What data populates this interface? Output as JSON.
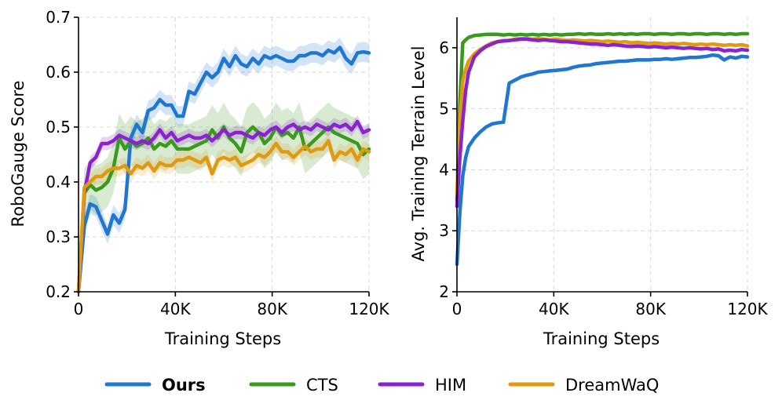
{
  "legend": [
    {
      "key": "ours",
      "label": "Ours",
      "color": "#1f77d0",
      "bold": true
    },
    {
      "key": "cts",
      "label": "CTS",
      "color": "#3a9a1e",
      "bold": false
    },
    {
      "key": "him",
      "label": "HIM",
      "color": "#8a22cf",
      "bold": false
    },
    {
      "key": "dreamwaq",
      "label": "DreamWaQ",
      "color": "#e09a12",
      "bold": false
    }
  ],
  "chart_data": [
    {
      "type": "line",
      "title": "",
      "xlabel": "Training Steps",
      "ylabel": "RoboGauge Score",
      "xlim": [
        0,
        120000
      ],
      "ylim": [
        0.2,
        0.7
      ],
      "xticks": [
        0,
        40000,
        80000,
        120000
      ],
      "xtick_labels": [
        "0",
        "40K",
        "80K",
        "120K"
      ],
      "yticks": [
        0.2,
        0.3,
        0.4,
        0.5,
        0.6,
        0.7
      ],
      "ytick_labels": [
        "0.2",
        "0.3",
        "0.4",
        "0.5",
        "0.6",
        "0.7"
      ],
      "grid": true,
      "x": [
        0,
        2400,
        4800,
        7200,
        9600,
        12000,
        14400,
        16800,
        19200,
        21600,
        24000,
        26400,
        28800,
        31200,
        33600,
        36000,
        38400,
        40800,
        43200,
        45600,
        48000,
        50400,
        52800,
        55200,
        57600,
        60000,
        62400,
        64800,
        67200,
        69600,
        72000,
        74400,
        76800,
        79200,
        81600,
        84000,
        86400,
        88800,
        91200,
        93600,
        96000,
        98400,
        100800,
        103200,
        105600,
        108000,
        110400,
        112800,
        115200,
        117600,
        120000
      ],
      "series": [
        {
          "key": "ours",
          "name": "Ours",
          "values": [
            0.2,
            0.32,
            0.36,
            0.355,
            0.33,
            0.305,
            0.34,
            0.325,
            0.35,
            0.48,
            0.505,
            0.49,
            0.53,
            0.535,
            0.55,
            0.54,
            0.54,
            0.52,
            0.52,
            0.565,
            0.56,
            0.58,
            0.6,
            0.59,
            0.6,
            0.625,
            0.61,
            0.63,
            0.615,
            0.61,
            0.625,
            0.615,
            0.63,
            0.625,
            0.63,
            0.625,
            0.62,
            0.62,
            0.63,
            0.63,
            0.635,
            0.635,
            0.63,
            0.64,
            0.635,
            0.645,
            0.625,
            0.615,
            0.635,
            0.637,
            0.635
          ],
          "spread": 0.018
        },
        {
          "key": "cts",
          "name": "CTS",
          "values": [
            0.2,
            0.38,
            0.395,
            0.385,
            0.39,
            0.4,
            0.425,
            0.48,
            0.46,
            0.475,
            0.465,
            0.47,
            0.48,
            0.46,
            0.47,
            0.465,
            0.475,
            0.46,
            0.46,
            0.46,
            0.465,
            0.47,
            0.475,
            0.495,
            0.48,
            0.5,
            0.48,
            0.47,
            0.455,
            0.49,
            0.5,
            0.49,
            0.47,
            0.48,
            0.5,
            0.485,
            0.49,
            0.48,
            0.5,
            0.46,
            0.47,
            0.48,
            0.49,
            0.5,
            0.49,
            0.485,
            0.48,
            0.475,
            0.47,
            0.45,
            0.46
          ],
          "spread": 0.045
        },
        {
          "key": "him",
          "name": "HIM",
          "values": [
            0.2,
            0.38,
            0.435,
            0.445,
            0.47,
            0.47,
            0.475,
            0.485,
            0.48,
            0.475,
            0.47,
            0.475,
            0.47,
            0.48,
            0.495,
            0.48,
            0.49,
            0.475,
            0.48,
            0.485,
            0.48,
            0.48,
            0.485,
            0.475,
            0.485,
            0.495,
            0.485,
            0.49,
            0.49,
            0.485,
            0.48,
            0.49,
            0.485,
            0.495,
            0.5,
            0.49,
            0.5,
            0.505,
            0.495,
            0.5,
            0.495,
            0.505,
            0.5,
            0.495,
            0.505,
            0.5,
            0.505,
            0.495,
            0.51,
            0.49,
            0.495
          ],
          "spread": 0.012
        },
        {
          "key": "dreamwaq",
          "name": "DreamWaQ",
          "values": [
            0.2,
            0.39,
            0.4,
            0.41,
            0.41,
            0.42,
            0.425,
            0.425,
            0.43,
            0.415,
            0.43,
            0.425,
            0.435,
            0.42,
            0.435,
            0.43,
            0.43,
            0.44,
            0.44,
            0.445,
            0.44,
            0.435,
            0.445,
            0.415,
            0.44,
            0.445,
            0.44,
            0.445,
            0.43,
            0.435,
            0.44,
            0.45,
            0.445,
            0.455,
            0.47,
            0.455,
            0.455,
            0.445,
            0.455,
            0.465,
            0.455,
            0.46,
            0.46,
            0.475,
            0.44,
            0.455,
            0.45,
            0.46,
            0.44,
            0.46,
            0.455
          ],
          "spread": 0.015
        }
      ]
    },
    {
      "type": "line",
      "title": "",
      "xlabel": "Training Steps",
      "ylabel": "Avg. Training Terrain Level",
      "xlim": [
        0,
        120000
      ],
      "ylim": [
        2,
        6.5
      ],
      "xticks": [
        0,
        40000,
        80000,
        120000
      ],
      "xtick_labels": [
        "0",
        "40K",
        "80K",
        "120K"
      ],
      "yticks": [
        2,
        3,
        4,
        5,
        6
      ],
      "ytick_labels": [
        "2",
        "3",
        "4",
        "5",
        "6"
      ],
      "grid": true,
      "x": [
        0,
        1200,
        2400,
        3600,
        4800,
        7200,
        9600,
        12000,
        14400,
        16800,
        19200,
        21600,
        24000,
        26400,
        28800,
        31200,
        33600,
        36000,
        38400,
        40800,
        43200,
        45600,
        48000,
        50400,
        52800,
        55200,
        57600,
        60000,
        62400,
        64800,
        67200,
        69600,
        72000,
        74400,
        76800,
        79200,
        81600,
        84000,
        86400,
        88800,
        91200,
        93600,
        96000,
        98400,
        100800,
        103200,
        105600,
        108000,
        110400,
        112800,
        115200,
        117600,
        120000
      ],
      "series": [
        {
          "key": "ours",
          "name": "Ours",
          "values": [
            2.45,
            3.3,
            3.9,
            4.2,
            4.38,
            4.52,
            4.62,
            4.7,
            4.75,
            4.77,
            4.78,
            5.42,
            5.47,
            5.52,
            5.55,
            5.57,
            5.6,
            5.61,
            5.62,
            5.63,
            5.64,
            5.65,
            5.68,
            5.7,
            5.71,
            5.72,
            5.74,
            5.75,
            5.76,
            5.77,
            5.78,
            5.78,
            5.79,
            5.8,
            5.8,
            5.8,
            5.81,
            5.81,
            5.82,
            5.81,
            5.82,
            5.83,
            5.84,
            5.84,
            5.85,
            5.86,
            5.88,
            5.87,
            5.8,
            5.85,
            5.83,
            5.86,
            5.85
          ],
          "spread": 0.025
        },
        {
          "key": "cts",
          "name": "CTS",
          "values": [
            3.5,
            5.1,
            6.08,
            6.13,
            6.17,
            6.2,
            6.21,
            6.22,
            6.22,
            6.22,
            6.21,
            6.22,
            6.21,
            6.22,
            6.21,
            6.22,
            6.21,
            6.22,
            6.21,
            6.22,
            6.21,
            6.22,
            6.22,
            6.23,
            6.22,
            6.23,
            6.22,
            6.22,
            6.23,
            6.22,
            6.23,
            6.22,
            6.23,
            6.22,
            6.23,
            6.23,
            6.22,
            6.23,
            6.23,
            6.22,
            6.23,
            6.23,
            6.22,
            6.23,
            6.23,
            6.22,
            6.23,
            6.23,
            6.22,
            6.23,
            6.22,
            6.23,
            6.23
          ],
          "spread": 0.01
        },
        {
          "key": "dreamwaq",
          "name": "DreamWaQ",
          "values": [
            3.6,
            4.8,
            5.45,
            5.65,
            5.78,
            5.9,
            5.97,
            6.03,
            6.08,
            6.1,
            6.12,
            6.12,
            6.14,
            6.15,
            6.15,
            6.14,
            6.15,
            6.14,
            6.13,
            6.14,
            6.13,
            6.12,
            6.13,
            6.12,
            6.11,
            6.12,
            6.11,
            6.1,
            6.11,
            6.1,
            6.09,
            6.1,
            6.08,
            6.09,
            6.08,
            6.07,
            6.08,
            6.07,
            6.06,
            6.07,
            6.06,
            6.07,
            6.06,
            6.05,
            6.06,
            6.05,
            6.06,
            6.05,
            6.04,
            6.05,
            6.04,
            6.05,
            6.03
          ],
          "spread": 0.012
        },
        {
          "key": "him",
          "name": "HIM",
          "values": [
            3.4,
            4.2,
            4.8,
            5.3,
            5.6,
            5.85,
            5.95,
            6.02,
            6.06,
            6.1,
            6.11,
            6.12,
            6.13,
            6.14,
            6.14,
            6.13,
            6.12,
            6.13,
            6.12,
            6.11,
            6.1,
            6.1,
            6.09,
            6.08,
            6.07,
            6.06,
            6.06,
            6.05,
            6.04,
            6.05,
            6.04,
            6.03,
            6.02,
            6.03,
            6.02,
            6.01,
            6.02,
            6.01,
            6.0,
            6.01,
            6.0,
            5.99,
            6.0,
            5.99,
            5.98,
            5.99,
            5.97,
            5.98,
            5.95,
            5.96,
            5.95,
            5.97,
            5.96
          ],
          "spread": 0.012
        }
      ]
    }
  ]
}
